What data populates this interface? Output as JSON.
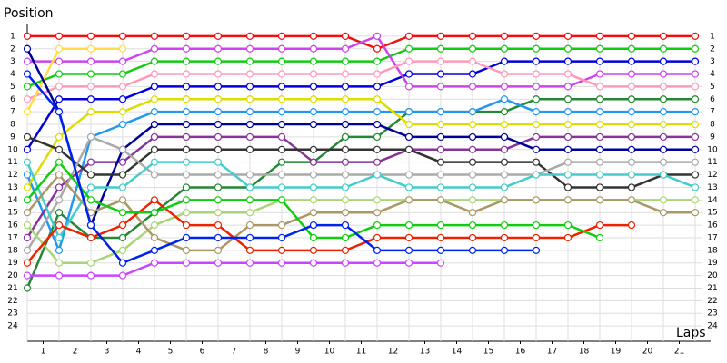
{
  "chart_data": {
    "type": "line",
    "y_label": "Position",
    "x_label": "Laps",
    "x": [
      0,
      1,
      2,
      3,
      4,
      5,
      6,
      7,
      8,
      9,
      10,
      11,
      12,
      13,
      14,
      15,
      16,
      17,
      18,
      19,
      20,
      21
    ],
    "xlim": [
      0,
      21.5
    ],
    "xticks": [
      {
        "value": 0.5,
        "label": "1"
      },
      {
        "value": 1.5,
        "label": "2"
      },
      {
        "value": 2.5,
        "label": "3"
      },
      {
        "value": 3.5,
        "label": "4"
      },
      {
        "value": 4.5,
        "label": "5"
      },
      {
        "value": 5.5,
        "label": "6"
      },
      {
        "value": 6.5,
        "label": "7"
      },
      {
        "value": 7.5,
        "label": "8"
      },
      {
        "value": 8.5,
        "label": "9"
      },
      {
        "value": 9.5,
        "label": "10"
      },
      {
        "value": 10.5,
        "label": "11"
      },
      {
        "value": 11.5,
        "label": "12"
      },
      {
        "value": 12.5,
        "label": "13"
      },
      {
        "value": 13.5,
        "label": "14"
      },
      {
        "value": 14.5,
        "label": "15"
      },
      {
        "value": 15.5,
        "label": "16"
      },
      {
        "value": 16.5,
        "label": "17"
      },
      {
        "value": 17.5,
        "label": "18"
      },
      {
        "value": 18.5,
        "label": "19"
      },
      {
        "value": 19.5,
        "label": "20"
      },
      {
        "value": 20.5,
        "label": "21"
      }
    ],
    "ylim": [
      0,
      25
    ],
    "y_inverted": true,
    "yticks": [
      1,
      2,
      3,
      4,
      5,
      6,
      7,
      8,
      9,
      10,
      11,
      12,
      13,
      14,
      15,
      16,
      17,
      18,
      19,
      20,
      21,
      22,
      23,
      24
    ],
    "grid": true,
    "series": [
      {
        "color": "#ee1111",
        "values": [
          1,
          1,
          1,
          1,
          1,
          1,
          1,
          1,
          1,
          1,
          1,
          2,
          1,
          1,
          1,
          1,
          1,
          1,
          1,
          1,
          1,
          1
        ]
      },
      {
        "color": "#11cc11",
        "values": [
          5,
          4,
          4,
          4,
          3,
          3,
          3,
          3,
          3,
          3,
          3,
          3,
          2,
          2,
          2,
          2,
          2,
          2,
          2,
          2,
          2,
          2
        ]
      },
      {
        "color": "#0000dd",
        "values": [
          10,
          6,
          6,
          6,
          5,
          5,
          5,
          5,
          5,
          5,
          5,
          5,
          4,
          4,
          4,
          3,
          3,
          3,
          3,
          3,
          3,
          3
        ]
      },
      {
        "color": "#cc44ee",
        "values": [
          3,
          3,
          3,
          3,
          2,
          2,
          2,
          2,
          2,
          2,
          2,
          1,
          5,
          5,
          5,
          5,
          5,
          5,
          4,
          4,
          4,
          4
        ]
      },
      {
        "color": "#ff99bb",
        "values": [
          6,
          5,
          5,
          5,
          4,
          4,
          4,
          4,
          4,
          4,
          4,
          4,
          3,
          3,
          3,
          4,
          4,
          4,
          5,
          5,
          5,
          5
        ]
      },
      {
        "color": "#228833",
        "values": [
          21,
          15,
          17,
          17,
          15,
          13,
          13,
          13,
          11,
          11,
          9,
          9,
          7,
          7,
          7,
          7,
          6,
          6,
          6,
          6,
          6,
          6
        ]
      },
      {
        "color": "#2299ee",
        "values": [
          12,
          18,
          9,
          8,
          7,
          7,
          7,
          7,
          7,
          7,
          7,
          7,
          7,
          7,
          7,
          6,
          7,
          7,
          7,
          7,
          7,
          7
        ]
      },
      {
        "color": "#dddd00",
        "values": [
          13,
          9,
          7,
          7,
          6,
          6,
          6,
          6,
          6,
          6,
          6,
          6,
          8,
          8,
          8,
          8,
          8,
          8,
          8,
          8,
          8,
          8
        ]
      },
      {
        "color": "#ffdd44",
        "values": [
          7,
          2,
          2,
          2,
          null,
          null,
          null,
          null,
          null,
          null,
          null,
          null,
          null,
          null,
          null,
          null,
          null,
          null,
          null,
          null,
          null,
          null
        ]
      },
      {
        "color": "#883399",
        "values": [
          17,
          13,
          11,
          11,
          9,
          9,
          9,
          9,
          9,
          11,
          11,
          11,
          10,
          10,
          10,
          10,
          9,
          9,
          9,
          9,
          9,
          9
        ]
      },
      {
        "color": "#000099",
        "values": [
          2,
          7,
          16,
          10,
          8,
          8,
          8,
          8,
          8,
          8,
          8,
          8,
          9,
          9,
          9,
          9,
          10,
          10,
          10,
          10,
          10,
          10
        ]
      },
      {
        "color": "#333333",
        "values": [
          9,
          10,
          12,
          12,
          10,
          10,
          10,
          10,
          10,
          10,
          10,
          10,
          10,
          11,
          11,
          11,
          11,
          13,
          13,
          13,
          12,
          12
        ]
      },
      {
        "color": "#aaaaaa",
        "values": [
          18,
          14,
          9,
          10,
          12,
          12,
          12,
          12,
          12,
          12,
          12,
          12,
          12,
          12,
          12,
          12,
          12,
          11,
          11,
          11,
          11,
          11
        ]
      },
      {
        "color": "#44cccc",
        "values": [
          11,
          17,
          13,
          13,
          11,
          11,
          11,
          13,
          13,
          13,
          13,
          12,
          13,
          13,
          13,
          13,
          12,
          12,
          12,
          12,
          12,
          13
        ]
      },
      {
        "color": "#aad577",
        "values": [
          16,
          19,
          19,
          18,
          16,
          15,
          15,
          15,
          14,
          14,
          14,
          14,
          14,
          14,
          14,
          14,
          14,
          14,
          14,
          14,
          14,
          14
        ]
      },
      {
        "color": "#aa9966",
        "values": [
          15,
          12,
          15,
          14,
          17,
          18,
          18,
          16,
          16,
          15,
          15,
          15,
          14,
          14,
          15,
          14,
          14,
          14,
          14,
          14,
          15,
          15
        ]
      },
      {
        "color": "#ee2200",
        "values": [
          19,
          16,
          17,
          16,
          14,
          16,
          16,
          18,
          18,
          18,
          18,
          17,
          17,
          17,
          17,
          17,
          17,
          17,
          16,
          16,
          null,
          null
        ]
      },
      {
        "color": "#11cc11",
        "values": [
          14,
          11,
          14,
          15,
          15,
          14,
          14,
          14,
          14,
          17,
          17,
          16,
          16,
          16,
          16,
          16,
          16,
          16,
          17,
          null,
          null,
          null
        ]
      },
      {
        "color": "#0022ee",
        "values": [
          4,
          7,
          16,
          19,
          18,
          17,
          17,
          17,
          17,
          16,
          16,
          18,
          18,
          18,
          18,
          18,
          18,
          null,
          null,
          null,
          null,
          null
        ]
      },
      {
        "color": "#cc44ff",
        "values": [
          20,
          20,
          20,
          20,
          19,
          19,
          19,
          19,
          19,
          19,
          19,
          19,
          19,
          19,
          null,
          null,
          null,
          null,
          null,
          null,
          null,
          null
        ]
      }
    ]
  }
}
